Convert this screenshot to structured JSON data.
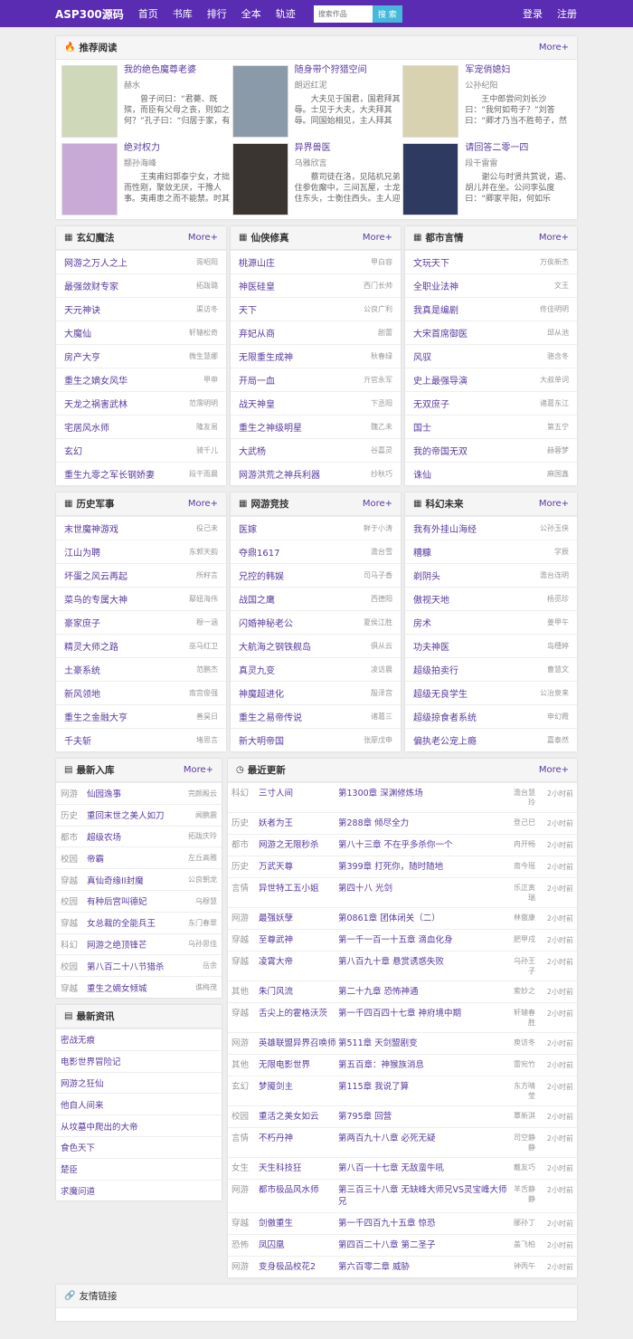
{
  "nav": {
    "brand": "ASP300源码",
    "items": [
      "首页",
      "书库",
      "排行",
      "全本",
      "轨迹"
    ],
    "search_placeholder": "搜索作品",
    "search_button": "搜 索",
    "login": "登录",
    "register": "注册"
  },
  "colors": {
    "nav": "#5a2cb2",
    "link": "#5a3a9e",
    "search_button": "#46b8da"
  },
  "recommend": {
    "title": "推荐阅读",
    "icon": "fire-icon",
    "more": "More+",
    "books": [
      {
        "title": "我的绝色魔尊老婆",
        "author": "赫水",
        "desc": "曾子问曰：“君薨、既殡，而臣有父母之丧，则如之何？”孔子曰：“归居于家，有殷事，",
        "cover": "#cfd8b8"
      },
      {
        "title": "随身带个狩猎空间",
        "author": "朗迟红泥",
        "desc": "大夫见于国君，国君拜其辱。士见于大夫，大夫拜其辱。同国始相见，主人拜其",
        "cover": "#8a9aa8"
      },
      {
        "title": "军宠俏媳妇",
        "author": "公孙纪阳",
        "desc": "王中郎尝问刘长沙曰：“我何如苟子？”刘答曰：“卿才乃当不胜苟子，然会名处多。”王笑",
        "cover": "#d9d2b0"
      },
      {
        "title": "绝对权力",
        "author": "颛孙海峰",
        "desc": "王夷甫妇郭泰宁女，才拙而性刚，聚敛无厌，干豫人事。夷甫患之而不能禁。时其",
        "cover": "#c9a9d6"
      },
      {
        "title": "异界兽医",
        "author": "乌雅欣言",
        "desc": "蔡司徒在洛，见陆机兄弟住参佐廨中，三间瓦屋，士龙住东头，士衡住西头。主人迎神出",
        "cover": "#3a3530"
      },
      {
        "title": "请回答二零一四",
        "author": "段干雷雷",
        "desc": "谢公与时贤共赏说，遏、胡儿并在坐。公问李弘度曰：“卿家平阳，何如乐令？”於是李",
        "cover": "#2e3a60"
      }
    ]
  },
  "categories": [
    {
      "title": "玄幻魔法",
      "more": "More+",
      "items": [
        [
          "网游之万人之上",
          "胥昭阳"
        ],
        [
          "最强敛财专家",
          "拓跋璐"
        ],
        [
          "天元神诀",
          "渠访冬"
        ],
        [
          "大魔仙",
          "轩辕松奇"
        ],
        [
          "房产大亨",
          "微生慧娜"
        ],
        [
          "重生之嫡女风华",
          "甲申"
        ],
        [
          "天龙之祸害武林",
          "范霈明明"
        ],
        [
          "宅居风水师",
          "隆友易"
        ],
        [
          "玄幻",
          "骑千儿"
        ],
        [
          "重生九零之军长钢娇妻",
          "段干雨晨"
        ]
      ]
    },
    {
      "title": "仙侠修真",
      "more": "More+",
      "items": [
        [
          "桃源山庄",
          "甲白容"
        ],
        [
          "神医硅皇",
          "西门长帅"
        ],
        [
          "天下",
          "公良广利"
        ],
        [
          "弃妃从商",
          "剧蕾"
        ],
        [
          "无限重生成神",
          "秋春绿"
        ],
        [
          "开局一血",
          "亓官永军"
        ],
        [
          "战天神皇",
          "下丞阳"
        ],
        [
          "重生之神级明星",
          "魏乙未"
        ],
        [
          "大武杨",
          "谷嘉灵"
        ],
        [
          "网游洪荒之神兵利器",
          "抄秋巧"
        ]
      ]
    },
    {
      "title": "都市言情",
      "more": "More+",
      "items": [
        [
          "文玩天下",
          "万俟新杰"
        ],
        [
          "全职业法神",
          "文王"
        ],
        [
          "我真是编剧",
          "佟佳明明"
        ],
        [
          "大宋首席御医",
          "邱从池"
        ],
        [
          "风驭",
          "骆含冬"
        ],
        [
          "史上最强导演",
          "大叔单词"
        ],
        [
          "无双庶子",
          "诸葛东江"
        ],
        [
          "国士",
          "第五宁"
        ],
        [
          "我的帝国无双",
          "赫蓉梦"
        ],
        [
          "诛仙",
          "麻国鑫"
        ]
      ]
    },
    {
      "title": "历史军事",
      "more": "More+",
      "items": [
        [
          "末世魔神游戏",
          "役己未"
        ],
        [
          "江山为聘",
          "东郭天韵"
        ],
        [
          "坏蛋之风云再起",
          "所籽言"
        ],
        [
          "菜鸟的专属大神",
          "鄢妞海伟"
        ],
        [
          "豪家庶子",
          "穆一涵"
        ],
        [
          "精灵大师之路",
          "巫马红卫"
        ],
        [
          "土豪系统",
          "范鹏杰"
        ],
        [
          "新风领地",
          "南宫俊强"
        ],
        [
          "重生之金融大亨",
          "善昊日"
        ],
        [
          "千夫斩",
          "堵思言"
        ]
      ]
    },
    {
      "title": "网游竞技",
      "more": "More+",
      "items": [
        [
          "医嫁",
          "鲜于小涛"
        ],
        [
          "夺鼎1617",
          "澹台雪"
        ],
        [
          "兄控的韩娱",
          "司马子香"
        ],
        [
          "战国之鹰",
          "西德阳"
        ],
        [
          "闪婚神秘老公",
          "夏侯江胜"
        ],
        [
          "大航海之钢铁舰岛",
          "俱从云"
        ],
        [
          "真灵九变",
          "凌访晨"
        ],
        [
          "神魔超进化",
          "殷泽宫"
        ],
        [
          "重生之易帝传说",
          "诸葛三"
        ],
        [
          "新大明帝国",
          "张廖戊申"
        ]
      ]
    },
    {
      "title": "科幻未来",
      "more": "More+",
      "items": [
        [
          "我有外挂山海经",
          "公孙玉侠"
        ],
        [
          "糟糠",
          "学辰"
        ],
        [
          "剃阴头",
          "澹台连明"
        ],
        [
          "傲视天地",
          "杨觅珍"
        ],
        [
          "房术",
          "姜甲午"
        ],
        [
          "功夫神医",
          "岛穗婷"
        ],
        [
          "超级拍卖行",
          "曹慧文"
        ],
        [
          "超级无良学生",
          "公冶泉来"
        ],
        [
          "超级掠食者系统",
          "申幻霞"
        ],
        [
          "偏执老公宠上瘾",
          "嘉泰然"
        ]
      ]
    }
  ],
  "new_books": {
    "title": "最新入库",
    "more": "More+",
    "items": [
      [
        "网游",
        "仙园逸事",
        "完颜殿云"
      ],
      [
        "历史",
        "重回末世之美人如刀",
        "闻鹏震"
      ],
      [
        "都市",
        "超级农场",
        "拓跋庆玲"
      ],
      [
        "校园",
        "帝霸",
        "左丘高雅"
      ],
      [
        "穿越",
        "真仙奇缘II封魔",
        "公良朝龙"
      ],
      [
        "校园",
        "有种后宫叫德妃",
        "乌穆慧"
      ],
      [
        "穿越",
        "女总裁的全能兵王",
        "东门春翠"
      ],
      [
        "科幻",
        "网游之绝顶锋芒",
        "乌孙思佳"
      ],
      [
        "校园",
        "第八百二十八节猎杀",
        "岳余"
      ],
      [
        "穿越",
        "重生之嫡女倾城",
        "谯梅茂"
      ]
    ]
  },
  "news": {
    "title": "最新资讯",
    "items": [
      "密战无痕",
      "电影世界冒险记",
      "网游之狂仙",
      "他自人间来",
      "从坟墓中爬出的大帝",
      "食色天下",
      "楚臣",
      "求魔问道"
    ]
  },
  "updates": {
    "title": "最近更新",
    "more": "More+",
    "items": [
      [
        "科幻",
        "三寸人间",
        "第1300章 深渊修炼场",
        "澹台慧玲",
        "2小时前"
      ],
      [
        "历史",
        "妖者为王",
        "第288章 倾尽全力",
        "登己巳",
        "2小时前"
      ],
      [
        "都市",
        "网游之无限秒杀",
        "第八十三章 不在乎多杀你一个",
        "冉开畅",
        "2小时前"
      ],
      [
        "历史",
        "万武天尊",
        "第399章 打死你，随时随地",
        "南今瑶",
        "2小时前"
      ],
      [
        "言情",
        "异世特工五小姐",
        "第四十八 光剑",
        "乐正寅瑞",
        "2小时前"
      ],
      [
        "网游",
        "最强妖孽",
        "第0861章 团体闭关（二）",
        "林傲康",
        "2小时前"
      ],
      [
        "穿越",
        "至尊武神",
        "第一千一百一十五章 滴血化身",
        "肥甲戌",
        "2小时前"
      ],
      [
        "穿越",
        "凌霄大帝",
        "第八百九十章 悬赏诱惑失败",
        "乌孙王子",
        "2小时前"
      ],
      [
        "其他",
        "朱门风流",
        "第二十九章 恐怖神通",
        "索妙之",
        "2小时前"
      ],
      [
        "穿越",
        "舌尖上的霍格沃茨",
        "第一千四百四十七章 神府境中期",
        "轩辕春胜",
        "2小时前"
      ],
      [
        "网游",
        "英雄联盟异界召唤师",
        "第511章 天剑盟剧变",
        "庾访冬",
        "2小时前"
      ],
      [
        "其他",
        "无限电影世界",
        "第五百章：神猴族消息",
        "雷宛竹",
        "2小时前"
      ],
      [
        "玄幻",
        "梦魇剑主",
        "第115章 我说了算",
        "东方晴莹",
        "2小时前"
      ],
      [
        "校园",
        "重活之美女如云",
        "第795章 回营",
        "覃新淇",
        "2小时前"
      ],
      [
        "言情",
        "不朽丹神",
        "第两百九十八章 必死无疑",
        "司空静静",
        "2小时前"
      ],
      [
        "女生",
        "天生科技狂",
        "第八百一十七章 无敌蛮牛吼",
        "戴友巧",
        "2小时前"
      ],
      [
        "网游",
        "都市极品风水师",
        "第三百三十八章 无缺峰大师兄VS灵宝峰大师兄",
        "羊舌静静",
        "2小时前"
      ],
      [
        "穿越",
        "剑傲重生",
        "第一千四百九十五章 惊恐",
        "郦孙丁",
        "2小时前"
      ],
      [
        "恐怖",
        "凤囚凰",
        "第四百二十八章 第二圣子",
        "盖飞柏",
        "2小时前"
      ],
      [
        "网游",
        "变身极品校花2",
        "第六百零二章 威胁",
        "钟丙午",
        "2小时前"
      ]
    ]
  },
  "friend_links": {
    "title": "友情链接"
  }
}
